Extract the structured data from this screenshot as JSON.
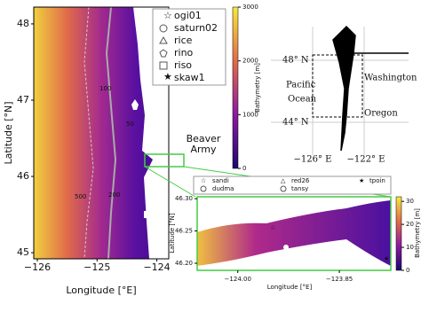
{
  "main_map": {
    "xlabel": "Longitude [°E]",
    "ylabel": "Latitude [°N]",
    "xlim": [
      -126.06,
      -123.8
    ],
    "ylim": [
      44.92,
      48.22
    ],
    "xticks": [
      {
        "value": -126,
        "label": "−126"
      },
      {
        "value": -125,
        "label": "−125"
      },
      {
        "value": -124,
        "label": "−124"
      }
    ],
    "yticks": [
      45,
      46,
      47,
      48
    ],
    "legend": [
      "ogi01",
      "saturn02",
      "rice",
      "rino",
      "riso",
      "skaw1"
    ],
    "contour_labels": [
      "100",
      "50",
      "200",
      "500"
    ],
    "annotation": [
      "Beaver",
      "Army"
    ]
  },
  "colorbar": {
    "label": "Bathymetry [m]",
    "lim": [
      0,
      3000
    ],
    "ticks": [
      0,
      1000,
      2000,
      3000
    ]
  },
  "locator_map": {
    "lat_labels": [
      "48° N",
      "44° N"
    ],
    "lon_labels": [
      "−126° E",
      "−122° E"
    ],
    "labels": [
      "Pacific",
      "Ocean",
      "Washington",
      "Oregon"
    ]
  },
  "inset": {
    "xlabel": "Longitude [°E]",
    "ylabel": "Latitude [°N]",
    "xlim": [
      -124.06,
      -123.774
    ],
    "xticks": [
      {
        "value": -124,
        "label": "−124.00"
      },
      {
        "value": -123.85,
        "label": "−123.85"
      }
    ],
    "ylim": [
      46.189,
      46.303
    ],
    "yticks": [
      {
        "value": 46.2,
        "label": "46.20"
      },
      {
        "value": 46.25,
        "label": "46.25"
      },
      {
        "value": 46.3,
        "label": "46.30"
      }
    ],
    "legend": [
      "sandi",
      "red26",
      "tpoin",
      "dudma",
      "tansy"
    ],
    "colorbar": {
      "label": "Bathymetry [m]",
      "lim": [
        0,
        32
      ],
      "ticks": [
        0,
        10,
        20,
        30
      ]
    }
  }
}
